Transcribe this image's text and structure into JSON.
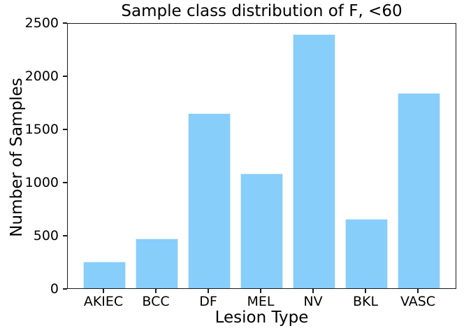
{
  "chart_data": {
    "type": "bar",
    "title": "Sample class distribution of F, <60",
    "xlabel": "Lesion Type",
    "ylabel": "Number of Samples",
    "categories": [
      "AKIEC",
      "BCC",
      "DF",
      "MEL",
      "NV",
      "BKL",
      "VASC"
    ],
    "values": [
      250,
      465,
      1645,
      1080,
      2390,
      650,
      1835
    ],
    "ylim": [
      0,
      2500
    ],
    "yticks": [
      0,
      500,
      1000,
      1500,
      2000,
      2500
    ],
    "bar_color": "#87CEFA",
    "bar_edge_color": "#d9edfb",
    "axis_color": "#1a1a1a",
    "grid": false,
    "legend": "none"
  }
}
